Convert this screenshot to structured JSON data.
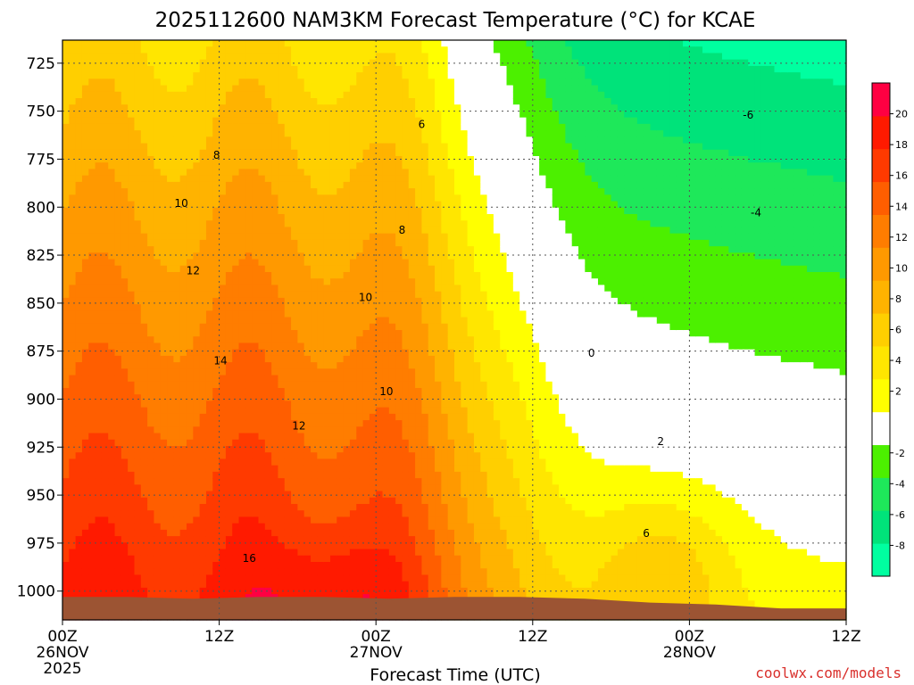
{
  "title": "2025112600 NAM3KM Forecast Temperature (°C) for KCAE",
  "credit": "coolwx.com/models",
  "colors": {
    "ground": "#9c5433",
    "zero_contour": "#c0197a",
    "contour": "#000000",
    "grid": "#555555"
  },
  "chart_data": {
    "type": "heatmap",
    "title": "2025112600 NAM3KM Forecast Temperature (°C) for KCAE",
    "xlabel": "Forecast Time (UTC)",
    "ylabel": "",
    "x_units": "hours since 2025-11-26 00Z",
    "y_units": "hPa",
    "xlim": [
      0,
      60
    ],
    "ylim": [
      1015,
      713
    ],
    "y_ticks": [
      725,
      750,
      775,
      800,
      825,
      850,
      875,
      900,
      925,
      950,
      975,
      1000
    ],
    "x_ticks": [
      {
        "x": 0,
        "label": "00Z",
        "date": "26NOV",
        "year": "2025"
      },
      {
        "x": 12,
        "label": "12Z",
        "date": "",
        "year": ""
      },
      {
        "x": 24,
        "label": "00Z",
        "date": "27NOV",
        "year": ""
      },
      {
        "x": 36,
        "label": "12Z",
        "date": "",
        "year": ""
      },
      {
        "x": 48,
        "label": "00Z",
        "date": "28NOV",
        "year": ""
      },
      {
        "x": 60,
        "label": "12Z",
        "date": "",
        "year": ""
      }
    ],
    "grid": true,
    "colorbar": {
      "levels": [
        -10,
        -8,
        -6,
        -4,
        -2,
        2,
        4,
        6,
        8,
        10,
        12,
        14,
        16,
        18,
        20,
        22
      ],
      "tick_labels": [
        -8,
        -6,
        -4,
        -2,
        2,
        4,
        6,
        8,
        10,
        12,
        14,
        16,
        18,
        20
      ],
      "colors": [
        "#00ffa0",
        "#00e37a",
        "#1ee85a",
        "#4cf000",
        "#ffffff",
        "#ffff00",
        "#ffe600",
        "#ffcf00",
        "#ffb300",
        "#ff9900",
        "#ff7d00",
        "#ff5e00",
        "#ff3a00",
        "#ff1a00",
        "#ff0042"
      ]
    },
    "contour_labels": [
      {
        "text": "6",
        "x": 27.5,
        "p": 757
      },
      {
        "text": "8",
        "x": 11.8,
        "p": 773
      },
      {
        "text": "10",
        "x": 9.1,
        "p": 798
      },
      {
        "text": "8",
        "x": 26.0,
        "p": 812
      },
      {
        "text": "12",
        "x": 10.0,
        "p": 833
      },
      {
        "text": "10",
        "x": 23.2,
        "p": 847
      },
      {
        "text": "14",
        "x": 12.1,
        "p": 880
      },
      {
        "text": "10",
        "x": 24.8,
        "p": 896
      },
      {
        "text": "12",
        "x": 18.1,
        "p": 914
      },
      {
        "text": "16",
        "x": 14.3,
        "p": 983
      },
      {
        "text": "0",
        "x": 40.5,
        "p": 876
      },
      {
        "text": "2",
        "x": 45.8,
        "p": 922
      },
      {
        "text": "6",
        "x": 44.7,
        "p": 970
      },
      {
        "text": "-6",
        "x": 52.5,
        "p": 752
      },
      {
        "text": "-4",
        "x": 53.1,
        "p": 803
      }
    ],
    "terrain_surface_hPa": [
      1003,
      1003,
      1004,
      1003,
      1003,
      1004,
      1003,
      1003,
      1004,
      1006,
      1007,
      1009,
      1009
    ]
  }
}
